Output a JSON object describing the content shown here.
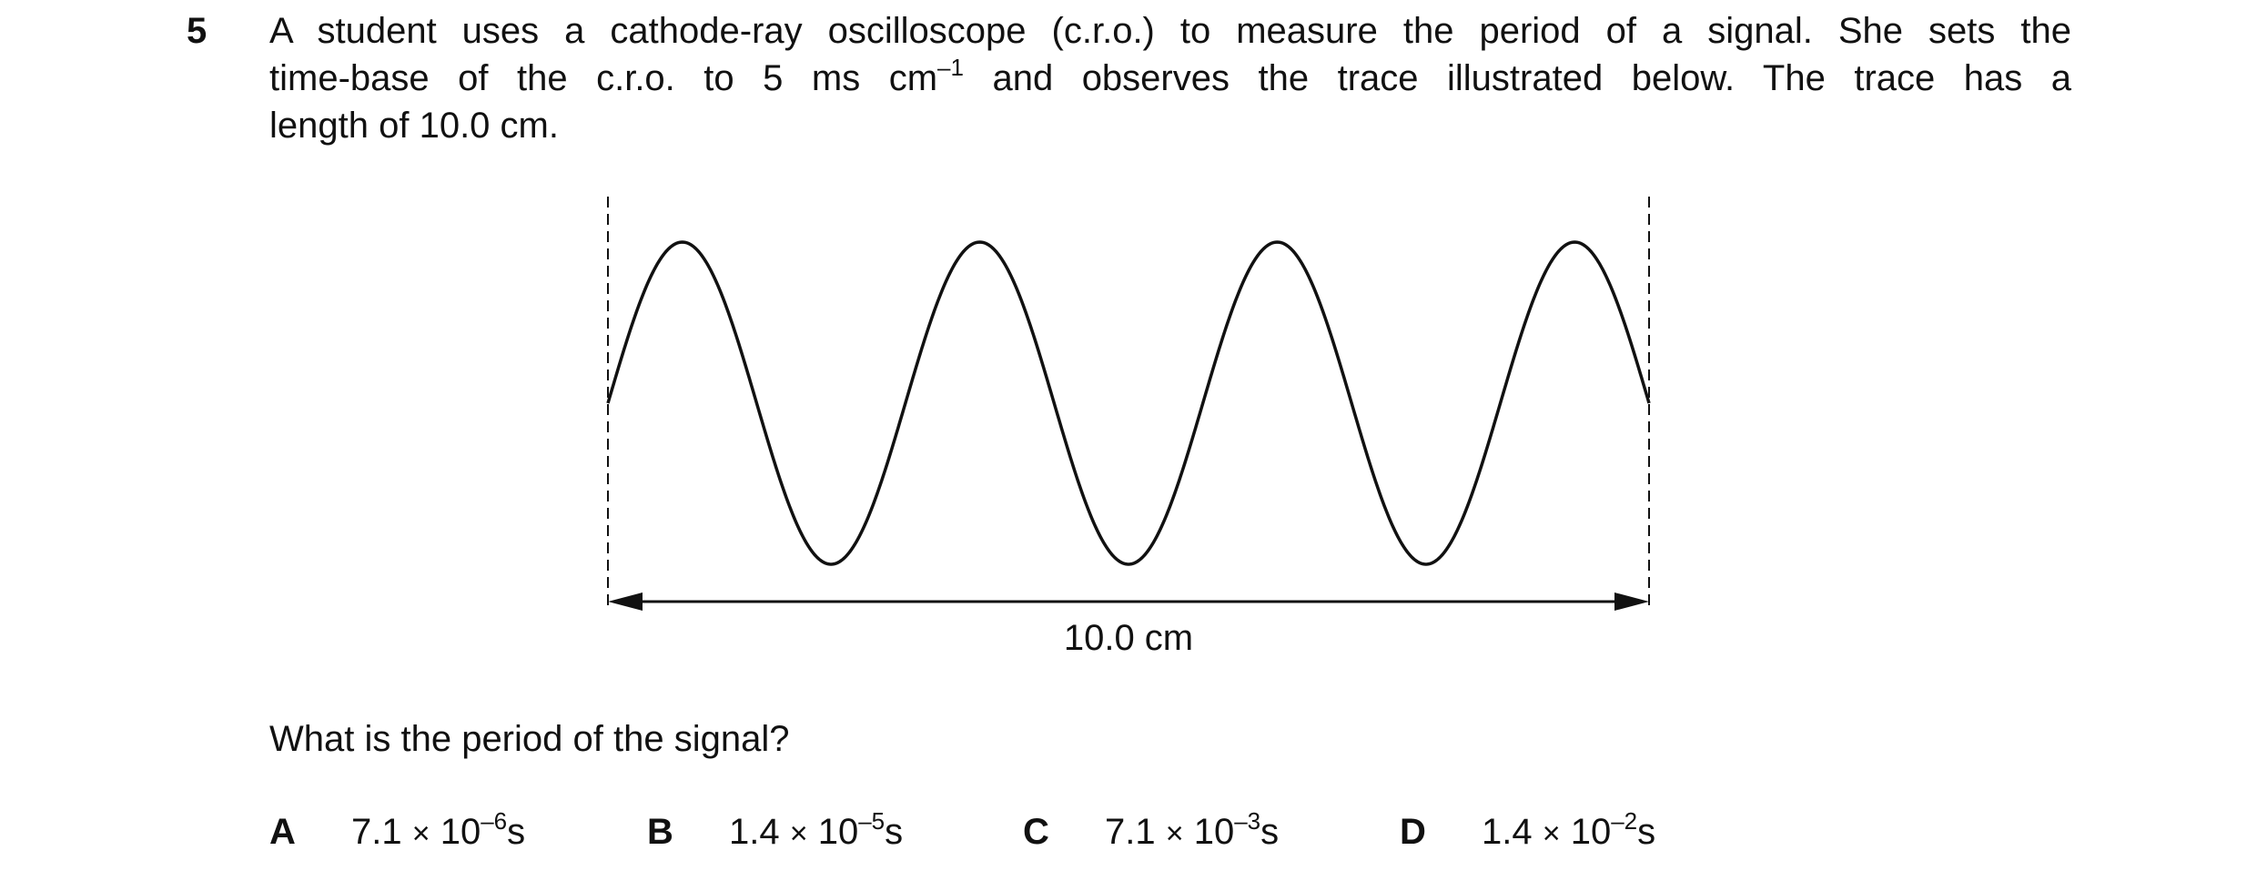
{
  "question": {
    "number": "5",
    "stem_line1": "A student uses a cathode-ray oscilloscope (c.r.o.) to measure the period of a signal. She sets the",
    "stem_line2_a": "time-base of the c.r.o. to 5 ms cm",
    "stem_line2_sup": "–1",
    "stem_line2_b": " and observes the trace illustrated below. The trace has a",
    "stem_line3": "length of 10.0 cm.",
    "prompt": "What is the period of the signal?"
  },
  "diagram": {
    "length_label": "10.0 cm",
    "trace_cycles": 3.5,
    "trace_length_cm": 10.0
  },
  "options": [
    {
      "letter": "A",
      "mantissa": "7.1",
      "times": "×",
      "base": "10",
      "exponent": "–6",
      "unit": "s"
    },
    {
      "letter": "B",
      "mantissa": "1.4",
      "times": "×",
      "base": "10",
      "exponent": "–5",
      "unit": "s"
    },
    {
      "letter": "C",
      "mantissa": "7.1",
      "times": "×",
      "base": "10",
      "exponent": "–3",
      "unit": "s"
    },
    {
      "letter": "D",
      "mantissa": "1.4",
      "times": "×",
      "base": "10",
      "exponent": "–2",
      "unit": "s"
    }
  ]
}
